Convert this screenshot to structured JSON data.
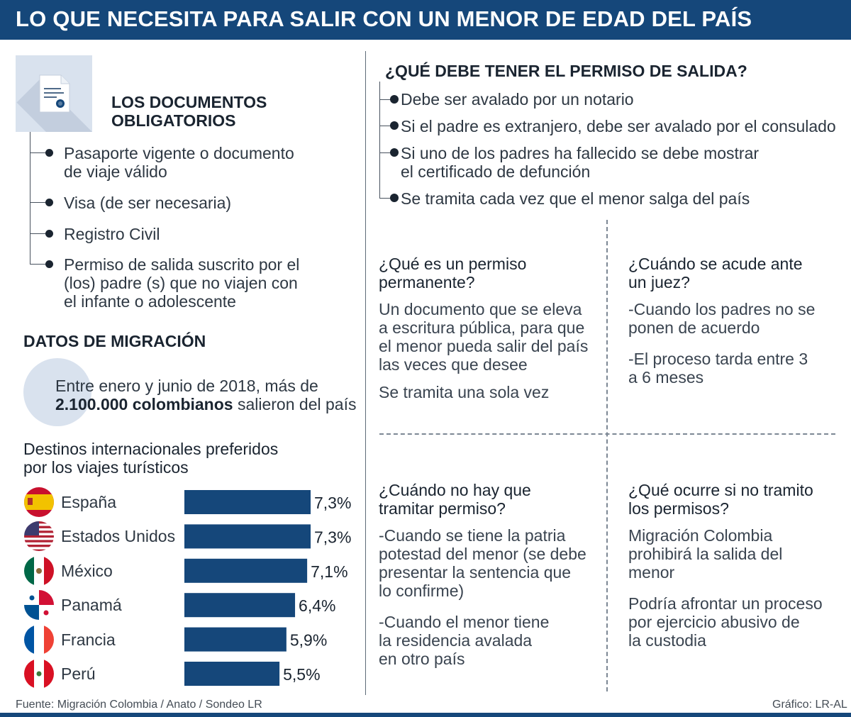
{
  "header": {
    "title": "LO QUE NECESITA PARA SALIR CON UN MENOR DE EDAD DEL PAÍS"
  },
  "documents": {
    "title_line1": "LOS DOCUMENTOS",
    "title_line2": "OBLIGATORIOS",
    "items": [
      {
        "line1": "Pasaporte vigente o documento",
        "line2": "de viaje válido"
      },
      {
        "line1": "Visa (de ser necesaria)"
      },
      {
        "line1": "Registro Civil"
      },
      {
        "line1": "Permiso de salida suscrito por el",
        "line2": "(los) padre (s) que no viajen con",
        "line3": "el infante o adolescente"
      }
    ]
  },
  "migration": {
    "title": "DATOS DE MIGRACIÓN",
    "stat_prefix": "Entre enero y junio de 2018, más de",
    "stat_highlight": "2.100.000 colombianos",
    "stat_suffix": " salieron del país"
  },
  "permit": {
    "title": "¿QUÉ DEBE TENER EL PERMISO DE SALIDA?",
    "items": [
      {
        "line1": "Debe ser avalado por un notario"
      },
      {
        "line1": "Si el padre es extranjero, debe ser avalado por el consulado"
      },
      {
        "line1": "Si uno de los padres ha fallecido se debe mostrar",
        "line2": "el certificado de defunción"
      },
      {
        "line1": "Se tramita cada vez que el menor salga del país"
      }
    ]
  },
  "qa": {
    "q1": {
      "title": [
        "¿Qué es un permiso",
        "permanente?"
      ],
      "body": [
        "Un documento que se eleva",
        "a escritura pública, para que",
        "el menor pueda salir del país",
        "las veces que desee"
      ],
      "body2": [
        "Se tramita una sola vez"
      ]
    },
    "q2": {
      "title": [
        "¿Cuándo se acude ante",
        "un juez?"
      ],
      "body": [
        "-Cuando los padres no se",
        "ponen de acuerdo"
      ],
      "body2": [
        "-El proceso tarda entre 3",
        "a 6 meses"
      ]
    },
    "q3": {
      "title": [
        "¿Cuándo no hay que",
        "tramitar permiso?"
      ],
      "body": [
        "-Cuando se tiene la patria",
        "potestad del menor (se debe",
        "presentar la sentencia que",
        "lo confirme)"
      ],
      "body2": [
        "-Cuando el menor tiene",
        "la residencia avalada",
        "en otro país"
      ]
    },
    "q4": {
      "title": [
        "¿Qué ocurre si no tramito",
        "los permisos?"
      ],
      "body": [
        "Migración Colombia",
        "prohibirá la salida del",
        "menor"
      ],
      "body2": [
        "Podría afrontar un proceso",
        "por ejercicio abusivo de",
        "la custodia"
      ]
    }
  },
  "chart_data": {
    "type": "bar",
    "orientation": "horizontal",
    "title": "Destinos internacionales preferidos por los viajes turísticos",
    "title_line1": "Destinos internacionales preferidos",
    "title_line2": "por los viajes turísticos",
    "categories": [
      "España",
      "Estados Unidos",
      "México",
      "Panamá",
      "Francia",
      "Perú"
    ],
    "values": [
      7.3,
      7.3,
      7.1,
      6.4,
      5.9,
      5.5
    ],
    "labels": [
      "7,3%",
      "7,3%",
      "7,1%",
      "6,4%",
      "5,9%",
      "5,5%"
    ],
    "unit": "%",
    "xlim": [
      0,
      7.3
    ],
    "bar_color": "#15477a"
  },
  "footer": {
    "source": "Fuente: Migración Colombia / Anato / Sondeo LR",
    "credit": "Gráfico: LR-AL"
  },
  "colors": {
    "brand": "#15477a",
    "light": "#d9e2ee"
  }
}
